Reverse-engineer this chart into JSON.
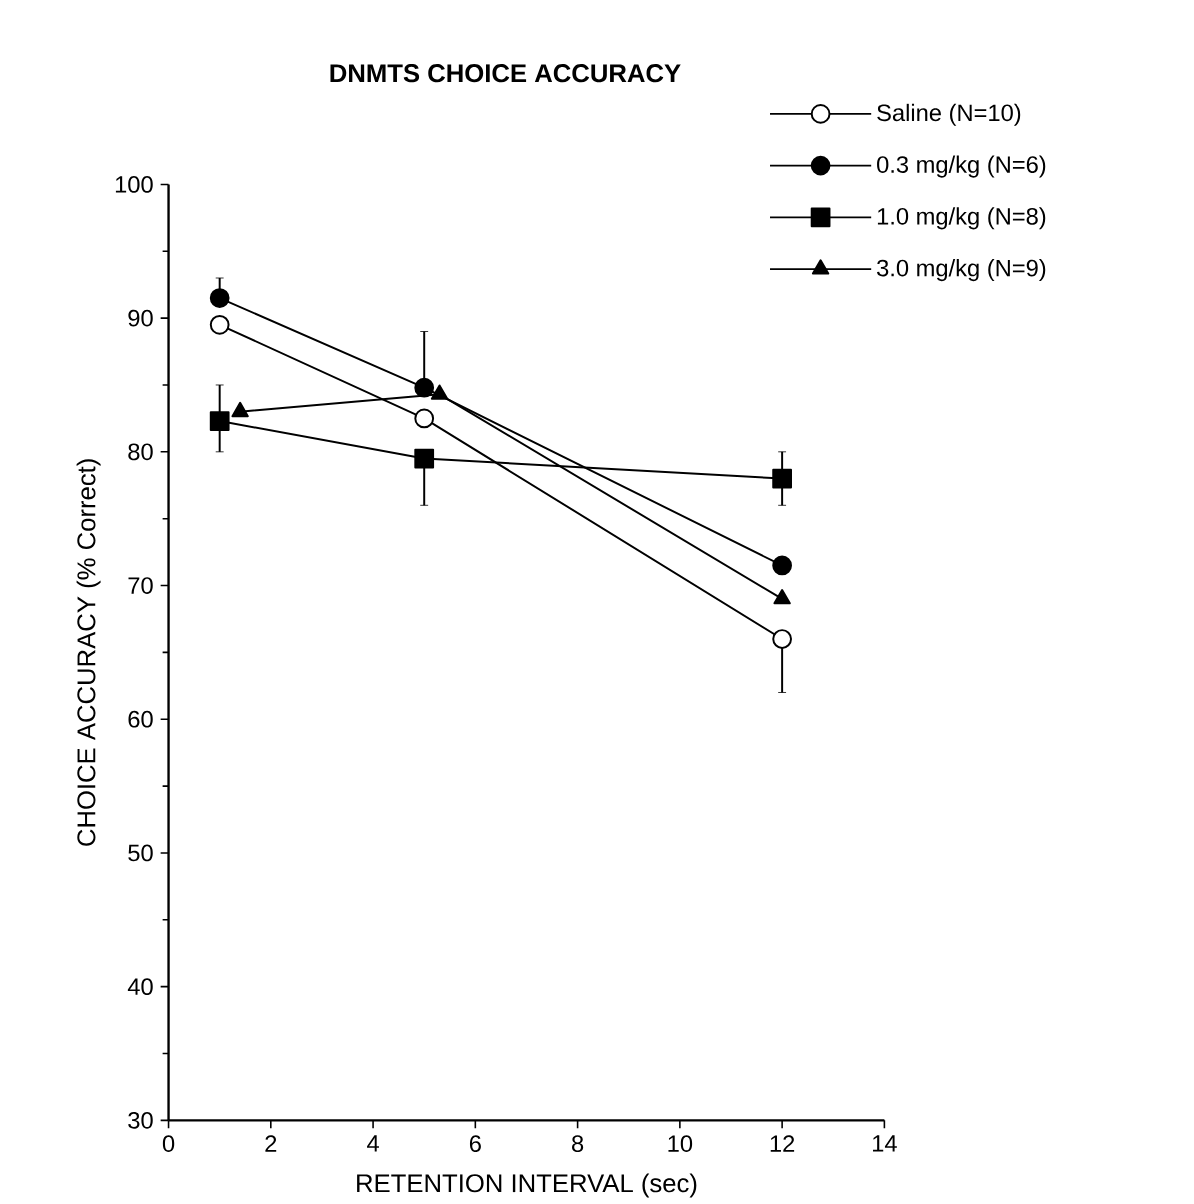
{
  "chart_data": {
    "type": "line",
    "title": "DNMTS CHOICE ACCURACY",
    "xlabel": "RETENTION INTERVAL (sec)",
    "ylabel": "CHOICE ACCURACY (% Correct)",
    "xlim": [
      0,
      14
    ],
    "xticks": [
      0,
      2,
      4,
      6,
      8,
      10,
      12,
      14
    ],
    "ylim": [
      30,
      100
    ],
    "yticks": [
      30,
      40,
      50,
      60,
      70,
      80,
      90,
      100
    ],
    "legend": "top right",
    "line_style": "solid",
    "grid": false,
    "series": [
      {
        "name": "Saline  (N=10)",
        "color": "#000000",
        "marker": "circle",
        "x": [
          1,
          5,
          12
        ],
        "values": [
          89.5,
          82.5,
          66
        ],
        "errors": [
          null,
          null,
          [
            62,
            66
          ]
        ]
      },
      {
        "name": "0.3 mg/kg  (N=6)",
        "color": "#000000",
        "marker": "circle",
        "x": [
          1,
          5,
          12
        ],
        "values": [
          91.5,
          84.8,
          71.5
        ],
        "errors": [
          [
            91.5,
            93
          ],
          [
            84.8,
            89
          ],
          null
        ]
      },
      {
        "name": "1.0 mg/kg  (N=8)",
        "color": "#000000",
        "marker": "square",
        "x": [
          1,
          5,
          12
        ],
        "values": [
          82.3,
          79.5,
          78
        ],
        "errors": [
          [
            80,
            85
          ],
          [
            76,
            79.5
          ],
          [
            76,
            80
          ]
        ]
      },
      {
        "name": "3.0 mg/kg  (N=9)",
        "color": "#000000",
        "marker": "triangle",
        "x": [
          1.4,
          5.3,
          12
        ],
        "values": [
          83,
          84.3,
          69
        ],
        "errors": [
          null,
          null,
          null
        ]
      }
    ]
  }
}
